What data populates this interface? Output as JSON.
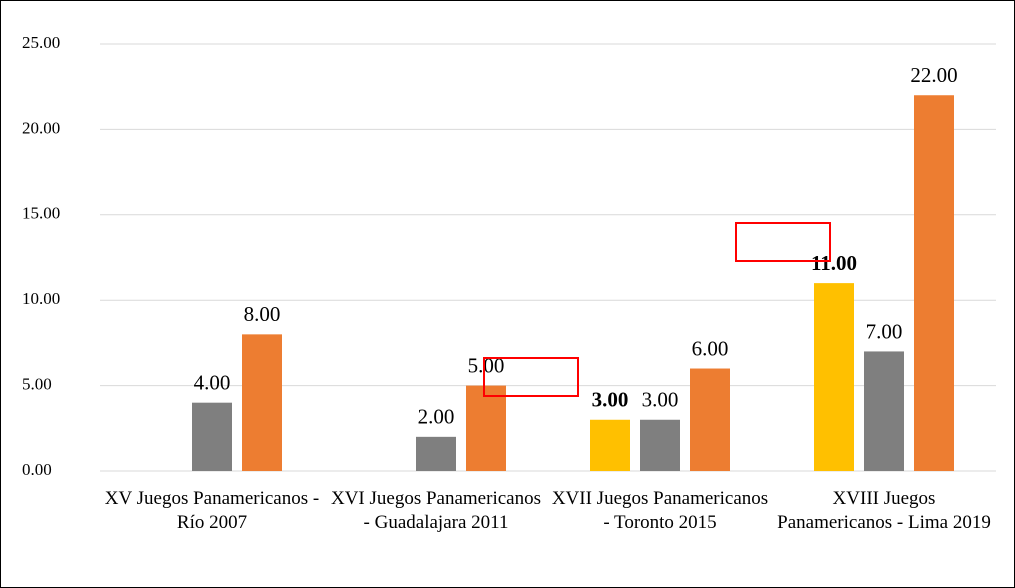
{
  "chart_data": {
    "type": "bar",
    "categories": [
      "XV Juegos Panamericanos - Río 2007",
      "XVI Juegos Panamericanos - Guadalajara 2011",
      "XVII Juegos Panamericanos - Toronto 2015",
      "XVIII Juegos Panamericanos - Lima 2019"
    ],
    "series": [
      {
        "color": "#ffc000",
        "values": [
          null,
          null,
          3,
          11
        ],
        "value_labels": [
          null,
          null,
          "3.00",
          "11.00"
        ]
      },
      {
        "color": "#7f7f7f",
        "values": [
          4,
          2,
          3,
          7
        ],
        "value_labels": [
          "4.00",
          "2.00",
          "3.00",
          "7.00"
        ]
      },
      {
        "color": "#ed7d31",
        "values": [
          8,
          5,
          6,
          22
        ],
        "value_labels": [
          "8.00",
          "5.00",
          "6.00",
          "22.00"
        ]
      }
    ],
    "ylim": [
      0,
      25
    ],
    "yticks": [
      {
        "value": 0,
        "label": "0.00"
      },
      {
        "value": 5,
        "label": "5.00"
      },
      {
        "value": 10,
        "label": "10.00"
      },
      {
        "value": 15,
        "label": "15.00"
      },
      {
        "value": 20,
        "label": "20.00"
      },
      {
        "value": 25,
        "label": "25.00"
      }
    ],
    "grid": true
  }
}
